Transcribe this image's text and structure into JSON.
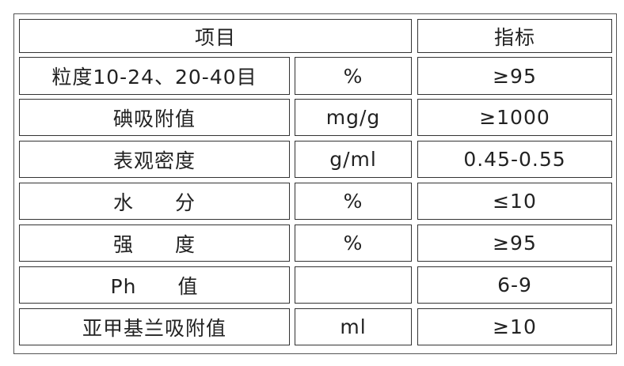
{
  "header": {
    "item": "项目",
    "spec": "指标"
  },
  "rows": [
    {
      "name": "粒度10-24、20-40目",
      "unit": "%",
      "value": "≥95"
    },
    {
      "name": "碘吸附值",
      "unit": "mg/g",
      "value": "≥1000"
    },
    {
      "name": "表观密度",
      "unit": "g/ml",
      "value": "0.45-0.55"
    },
    {
      "name": "水　　分",
      "unit": "%",
      "value": "≤10"
    },
    {
      "name": "强　　度",
      "unit": "%",
      "value": "≥95"
    },
    {
      "name": "Ph　　值",
      "unit": "",
      "value": "6-9"
    },
    {
      "name": "亚甲基兰吸附值",
      "unit": "ml",
      "value": "≥10"
    }
  ]
}
